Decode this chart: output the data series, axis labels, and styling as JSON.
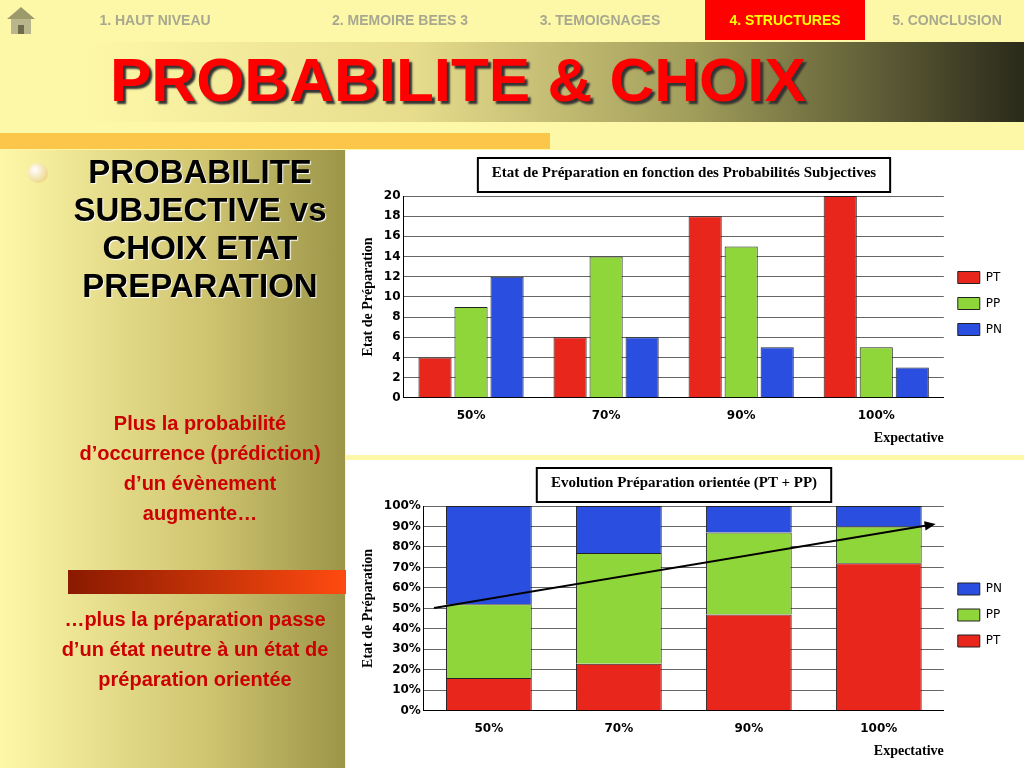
{
  "chart_data": [
    {
      "type": "other",
      "title": "PROBABILITE & CHOIX",
      "annotations": [
        "1. HAUT NIVEAU",
        "2. MEMOIRE BEES 3",
        "3. TEMOIGNAGES",
        "4. STRUCTURES",
        "5. CONCLUSION",
        "PROBABILITE SUBJECTIVE vs CHOIX ETAT PREPARATION",
        "Plus la probabilité d’occurrence (prédiction) d’un évènement augmente…",
        "…plus la préparation passe d’un état neutre à un état de préparation orientée"
      ]
    },
    {
      "type": "bar",
      "title": "Etat de Préparation en fonction des Probabilités Subjectives",
      "xlabel": "Expectative",
      "ylabel": "Etat de Préparation",
      "categories": [
        "50%",
        "70%",
        "90%",
        "100%"
      ],
      "series": [
        {
          "name": "PT",
          "color": "#e8261c",
          "values": [
            4,
            6,
            18,
            20
          ]
        },
        {
          "name": "PP",
          "color": "#8fd63a",
          "values": [
            9,
            14,
            15,
            5
          ]
        },
        {
          "name": "PN",
          "color": "#2a4fe0",
          "values": [
            12,
            6,
            5,
            3
          ]
        }
      ],
      "ylim": [
        0,
        20
      ],
      "yticks": [
        0,
        2,
        4,
        6,
        8,
        10,
        12,
        14,
        16,
        18,
        20
      ],
      "grid": "y",
      "legend": "right"
    },
    {
      "type": "bar",
      "title": "Evolution Préparation orientée (PT + PP)",
      "xlabel": "Expectative",
      "ylabel": "Etat de Préparation",
      "categories": [
        "50%",
        "70%",
        "90%",
        "100%"
      ],
      "stacked": true,
      "series": [
        {
          "name": "PT",
          "color": "#e8261c",
          "values": [
            16,
            23,
            47,
            72
          ]
        },
        {
          "name": "PP",
          "color": "#8fd63a",
          "values": [
            36,
            54,
            40,
            18
          ]
        },
        {
          "name": "PN",
          "color": "#2a4fe0",
          "values": [
            48,
            23,
            13,
            10
          ]
        }
      ],
      "ylim": [
        0,
        100
      ],
      "yticks": [
        {
          "value": 0,
          "label": "0%"
        },
        {
          "value": 10,
          "label": "10%"
        },
        {
          "value": 20,
          "label": "20%"
        },
        {
          "value": 30,
          "label": "30%"
        },
        {
          "value": 40,
          "label": "40%"
        },
        {
          "value": 50,
          "label": "50%"
        },
        {
          "value": 60,
          "label": "60%"
        },
        {
          "value": 70,
          "label": "70%"
        },
        {
          "value": 80,
          "label": "80%"
        },
        {
          "value": 90,
          "label": "90%"
        },
        {
          "value": 100,
          "label": "100%"
        }
      ],
      "grid": "y",
      "legend": "right"
    }
  ]
}
